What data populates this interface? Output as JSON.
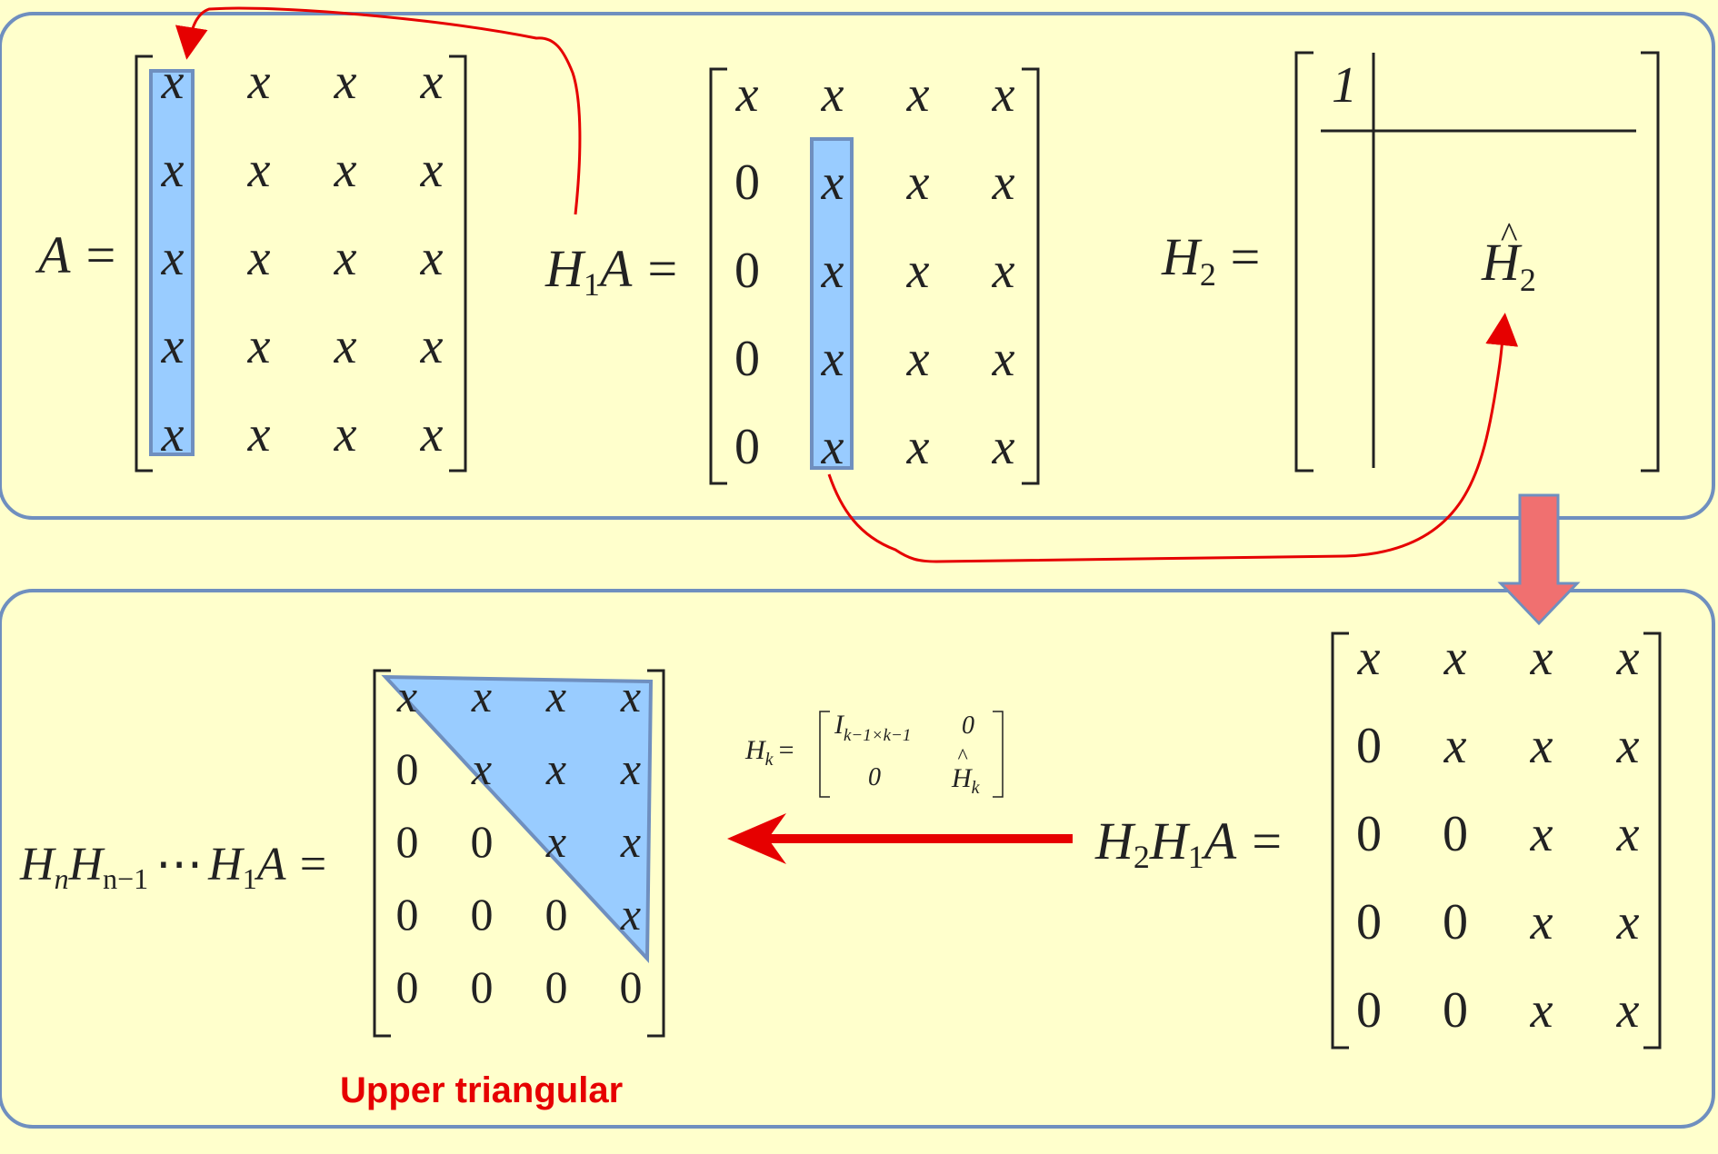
{
  "accent_colors": {
    "panel_border": "#6f8fbf",
    "highlight_fill": "#99ccff",
    "highlight_stroke": "#6f8fbf",
    "arrow_red": "#e60000",
    "down_arrow_fill": "#f07070"
  },
  "matrix_A": {
    "lhs": "A =",
    "rows": [
      [
        "x",
        "x",
        "x",
        "x"
      ],
      [
        "x",
        "x",
        "x",
        "x"
      ],
      [
        "x",
        "x",
        "x",
        "x"
      ],
      [
        "x",
        "x",
        "x",
        "x"
      ],
      [
        "x",
        "x",
        "x",
        "x"
      ]
    ]
  },
  "matrix_H1A": {
    "lhs": {
      "H": "H",
      "sub": "1",
      "rest": "A ="
    },
    "rows": [
      [
        "x",
        "x",
        "x",
        "x"
      ],
      [
        "0",
        "x",
        "x",
        "x"
      ],
      [
        "0",
        "x",
        "x",
        "x"
      ],
      [
        "0",
        "x",
        "x",
        "x"
      ],
      [
        "0",
        "x",
        "x",
        "x"
      ]
    ]
  },
  "matrix_H2": {
    "lhs": {
      "H": "H",
      "sub": "2",
      "rest": "="
    },
    "corner": "1",
    "block": {
      "H": "H",
      "hat": "^",
      "sub": "2"
    }
  },
  "matrix_H2H1A": {
    "lhs": {
      "H1": "H",
      "sub1": "2",
      "H2": "H",
      "sub2": "1",
      "rest": "A ="
    },
    "rows": [
      [
        "x",
        "x",
        "x",
        "x"
      ],
      [
        "0",
        "x",
        "x",
        "x"
      ],
      [
        "0",
        "0",
        "x",
        "x"
      ],
      [
        "0",
        "0",
        "x",
        "x"
      ],
      [
        "0",
        "0",
        "x",
        "x"
      ]
    ]
  },
  "matrix_final": {
    "lhs": {
      "Ha": "H",
      "suba": "n",
      "Hb": "H",
      "subb": "n−1",
      "dots": "⋯",
      "Hc": "H",
      "subc": "1",
      "rest": "A ="
    },
    "rows": [
      [
        "x",
        "x",
        "x",
        "x"
      ],
      [
        "0",
        "x",
        "x",
        "x"
      ],
      [
        "0",
        "0",
        "x",
        "x"
      ],
      [
        "0",
        "0",
        "0",
        "x"
      ],
      [
        "0",
        "0",
        "0",
        "0"
      ]
    ]
  },
  "hk_formula": {
    "lhs": {
      "H": "H",
      "sub": "k",
      "eq": "="
    },
    "r1c1": {
      "I": "I",
      "sub": "k−1×k−1"
    },
    "r1c2": "0",
    "r2c1": "0",
    "r2c2": {
      "H": "H",
      "hat": "^",
      "sub": "k"
    }
  },
  "caption": "Upper triangular"
}
